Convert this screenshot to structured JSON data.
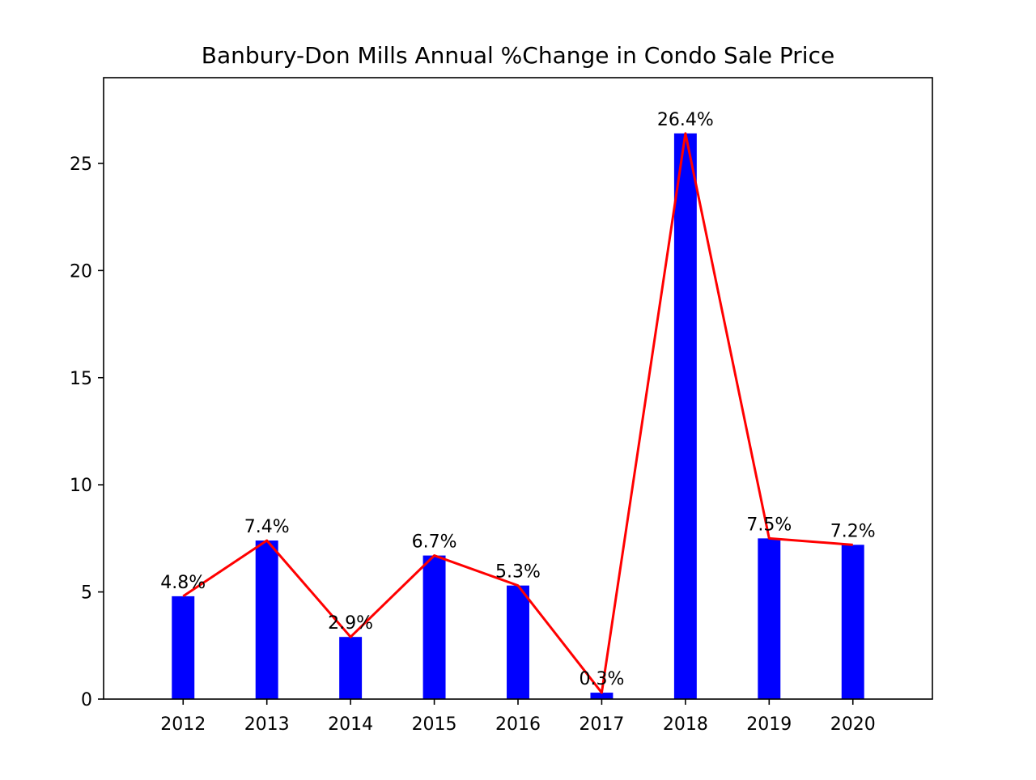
{
  "chart_data": {
    "type": "bar",
    "title": "Banbury-Don Mills Annual %Change in Condo Sale Price",
    "xlabel": "",
    "ylabel": "",
    "categories": [
      "2012",
      "2013",
      "2014",
      "2015",
      "2016",
      "2017",
      "2018",
      "2019",
      "2020"
    ],
    "values": [
      4.8,
      7.4,
      2.9,
      6.7,
      5.3,
      0.3,
      26.4,
      7.5,
      7.2
    ],
    "data_labels": [
      "4.8%",
      "7.4%",
      "2.9%",
      "6.7%",
      "5.3%",
      "0.3%",
      "26.4%",
      "7.5%",
      "7.2%"
    ],
    "overlay_line": true,
    "ylim": [
      0,
      29
    ],
    "yticks": [
      0,
      5,
      10,
      15,
      20,
      25
    ],
    "grid": false,
    "bar_color": "#0000ff",
    "line_color": "#ff0000"
  }
}
